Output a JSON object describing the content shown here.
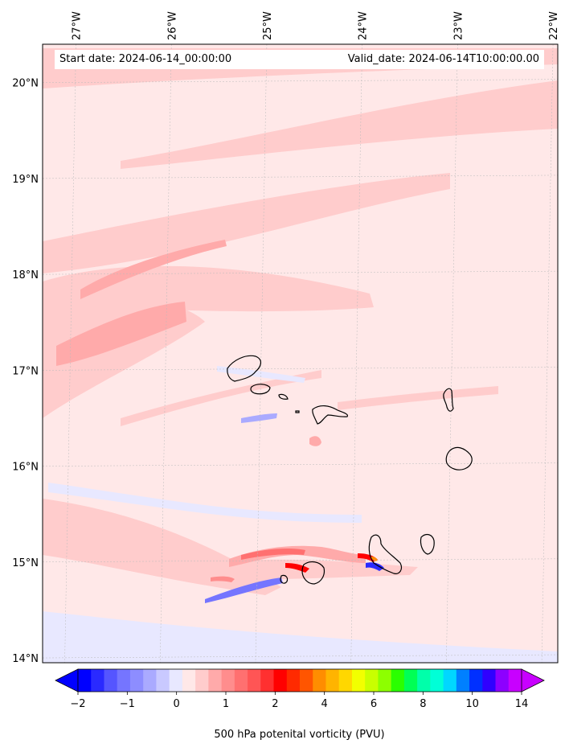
{
  "header": {
    "start_date": "Start date: 2024-06-14_00:00:00",
    "valid_date": "Valid_date: 2024-06-14T10:00:00.00"
  },
  "axes": {
    "lon_labels": [
      "27°W",
      "26°W",
      "25°W",
      "24°W",
      "23°W",
      "22°W"
    ],
    "lat_labels": [
      "20°N",
      "19°N",
      "18°N",
      "17°N",
      "16°N",
      "15°N",
      "14°N"
    ],
    "lon_values": [
      -27,
      -26,
      -25,
      -24,
      -23,
      -22
    ],
    "lat_values": [
      20,
      19,
      18,
      17,
      16,
      15,
      14
    ],
    "lon_range": [
      -27.35,
      -21.95
    ],
    "lat_range": [
      13.95,
      20.4
    ]
  },
  "colorbar": {
    "title": "500 hPa potenital vorticity (PVU)",
    "tick_labels": [
      "−2",
      "−1",
      "0",
      "1",
      "2",
      "4",
      "6",
      "8",
      "10",
      "14"
    ],
    "colors": [
      "#0000ff",
      "#2a2aff",
      "#5555ff",
      "#7575ff",
      "#8d8dff",
      "#aaaaff",
      "#c9c9ff",
      "#e8e8ff",
      "#ffe8e8",
      "#ffcccc",
      "#ffaaaa",
      "#ff8d8d",
      "#ff7070",
      "#ff5555",
      "#ff3030",
      "#ff0000",
      "#ff2a00",
      "#ff5500",
      "#ff8d00",
      "#ffb400",
      "#ffd700",
      "#f2ff00",
      "#c9ff00",
      "#8dff00",
      "#2aff00",
      "#00ff55",
      "#00ffaa",
      "#00ffd7",
      "#00d7ff",
      "#0080ff",
      "#0030ff",
      "#3000ff",
      "#8d00ff",
      "#c800ff"
    ],
    "extend": "both"
  },
  "colors": {
    "background_pv": "#ffe8e8",
    "weak_positive": "#ffcccc",
    "moderate_positive": "#ffaaaa",
    "negative": "#e8e8ff",
    "coastline": "#000000",
    "gridline": "#bbbbbb"
  }
}
